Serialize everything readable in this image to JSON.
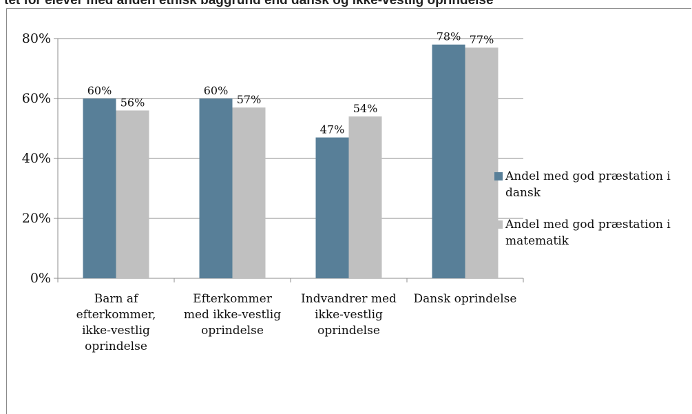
{
  "header": {
    "title_fragment": "tet for elever med anden etnisk baggrund end dansk og ikke-vestlig oprindelse"
  },
  "chart_data": {
    "type": "bar",
    "categories": [
      [
        "Barn af",
        "efterkommer,",
        "ikke-vestlig",
        "oprindelse"
      ],
      [
        "Efterkommer",
        "med ikke-vestlig",
        "oprindelse"
      ],
      [
        "Indvandrer med",
        "ikke-vestlig",
        "oprindelse"
      ],
      [
        "Dansk oprindelse"
      ]
    ],
    "series": [
      {
        "name": [
          "Andel med god præstation i",
          "dansk"
        ],
        "color": "#587f98",
        "values": [
          60,
          60,
          47,
          78
        ],
        "labels": [
          "60%",
          "60%",
          "47%",
          "78%"
        ]
      },
      {
        "name": [
          "Andel med god præstation i",
          "matematik"
        ],
        "color": "#c0c0c0",
        "values": [
          56,
          57,
          54,
          77
        ],
        "labels": [
          "56%",
          "57%",
          "54%",
          "77%"
        ]
      }
    ],
    "ylim": [
      0,
      80
    ],
    "yticks": [
      0,
      20,
      40,
      60,
      80
    ],
    "ytick_labels": [
      "0%",
      "20%",
      "40%",
      "60%",
      "80%"
    ],
    "grid": true,
    "legend": "right"
  }
}
